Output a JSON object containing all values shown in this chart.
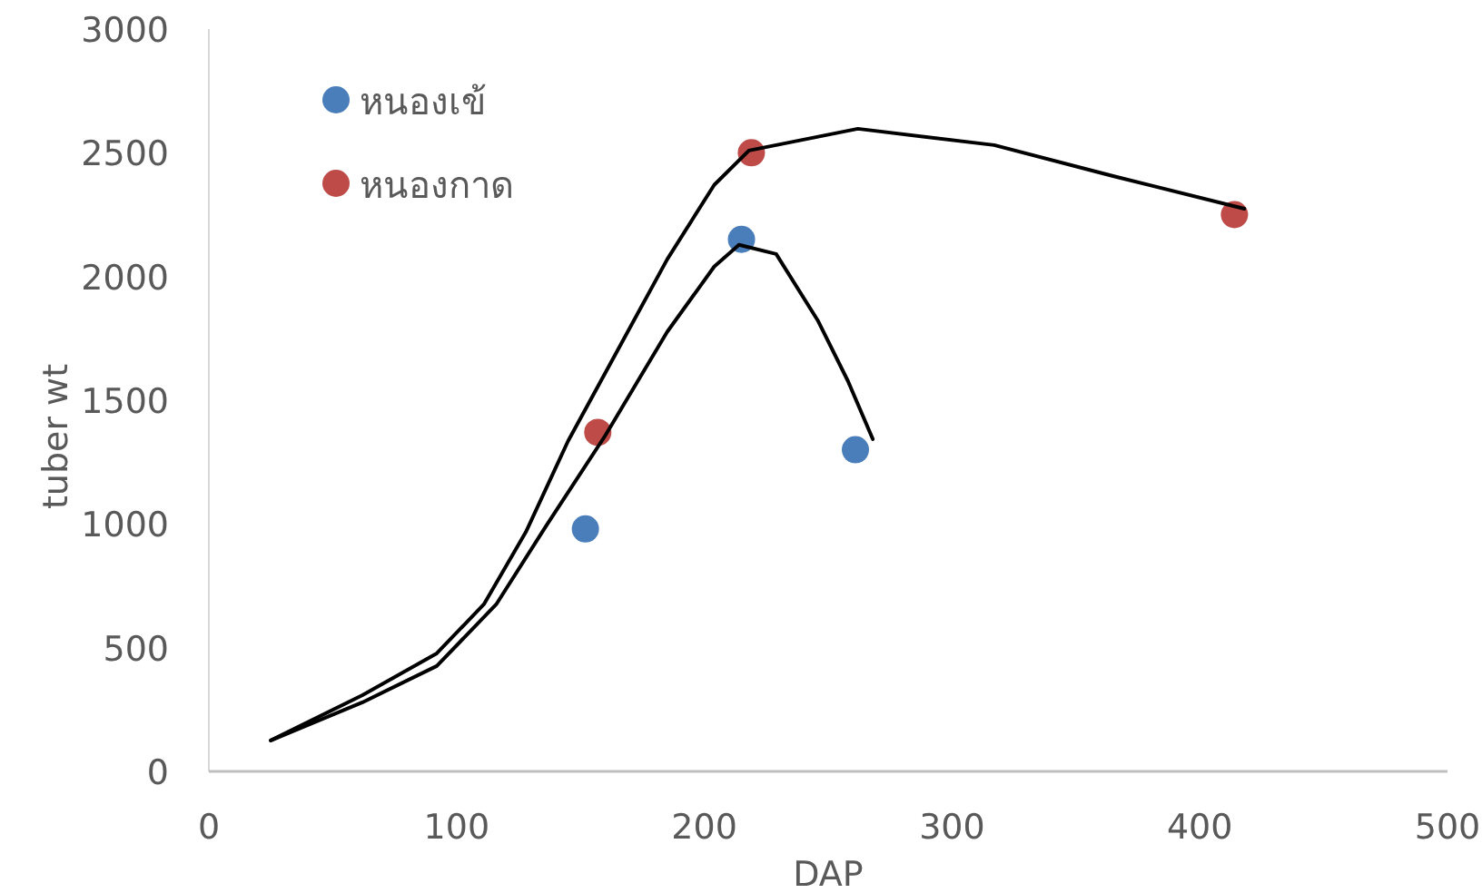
{
  "chart_data": {
    "type": "scatter",
    "xlabel": "DAP",
    "ylabel": "tuber wt",
    "xlim": [
      0,
      500
    ],
    "xticks": [
      0,
      100,
      200,
      300,
      400,
      500
    ],
    "ylim": [
      0,
      3000
    ],
    "yticks": [
      0,
      500,
      1000,
      1500,
      2000,
      2500,
      3000
    ],
    "grid": false,
    "legend": "top left",
    "marker": "circle",
    "series": [
      {
        "name": "หนองเข้",
        "color": "#4a7ebb",
        "x": [
          152,
          215,
          261
        ],
        "values": [
          980,
          2150,
          1300
        ]
      },
      {
        "name": "หนองกาด",
        "color": "#be4b48",
        "x": [
          157,
          219,
          414
        ],
        "values": [
          1370,
          2500,
          2250
        ]
      },
      {
        "type": "line",
        "color": "#000000",
        "marker": "none",
        "x": [
          25,
          62,
          92,
          116,
          136,
          160,
          185,
          204,
          214,
          229,
          246,
          258,
          268
        ],
        "values": [
          125,
          279,
          426,
          675,
          990,
          1357,
          1776,
          2040,
          2128,
          2091,
          1819,
          1577,
          1343
        ]
      },
      {
        "type": "line",
        "color": "#000000",
        "marker": "none",
        "x": [
          25,
          62,
          92,
          111,
          128,
          145,
          165,
          185,
          204,
          218,
          262,
          317,
          365,
          418
        ],
        "values": [
          125,
          308,
          477,
          675,
          968,
          1335,
          1702,
          2069,
          2370,
          2509,
          2597,
          2531,
          2406,
          2274
        ]
      }
    ]
  }
}
